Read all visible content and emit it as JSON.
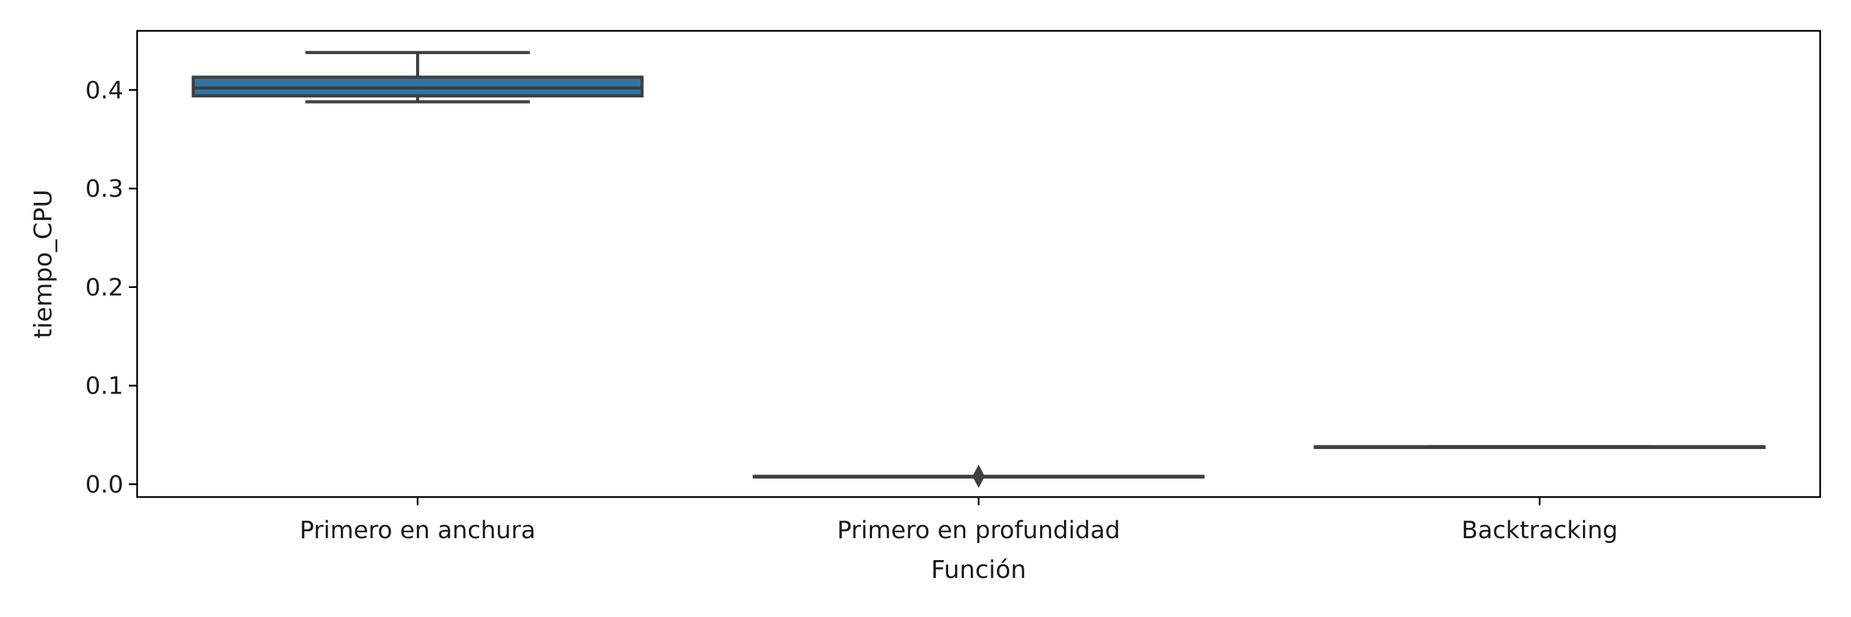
{
  "chart_data": {
    "type": "boxplot",
    "xlabel": "Función",
    "ylabel": "tiempo_CPU",
    "ylim": [
      -0.013,
      0.46
    ],
    "yticks": [
      0.0,
      0.1,
      0.2,
      0.3,
      0.4
    ],
    "ytick_labels": [
      "0.0",
      "0.1",
      "0.2",
      "0.3",
      "0.4"
    ],
    "categories": [
      "Primero en anchura",
      "Primero en profundidad",
      "Backtracking"
    ],
    "boxes": [
      {
        "category": "Primero en anchura",
        "whisker_low": 0.388,
        "q1": 0.394,
        "median": 0.402,
        "q3": 0.413,
        "whisker_high": 0.438,
        "outliers": []
      },
      {
        "category": "Primero en profundidad",
        "whisker_low": 0.008,
        "q1": 0.008,
        "median": 0.008,
        "q3": 0.008,
        "whisker_high": 0.008,
        "outliers": [
          0.008
        ]
      },
      {
        "category": "Backtracking",
        "whisker_low": 0.038,
        "q1": 0.038,
        "median": 0.038,
        "q3": 0.038,
        "whisker_high": 0.038,
        "outliers": []
      }
    ],
    "grid": false,
    "colors": {
      "box_fill": "#3274a1",
      "line": "#3f3f3f",
      "axis": "#000000"
    }
  }
}
